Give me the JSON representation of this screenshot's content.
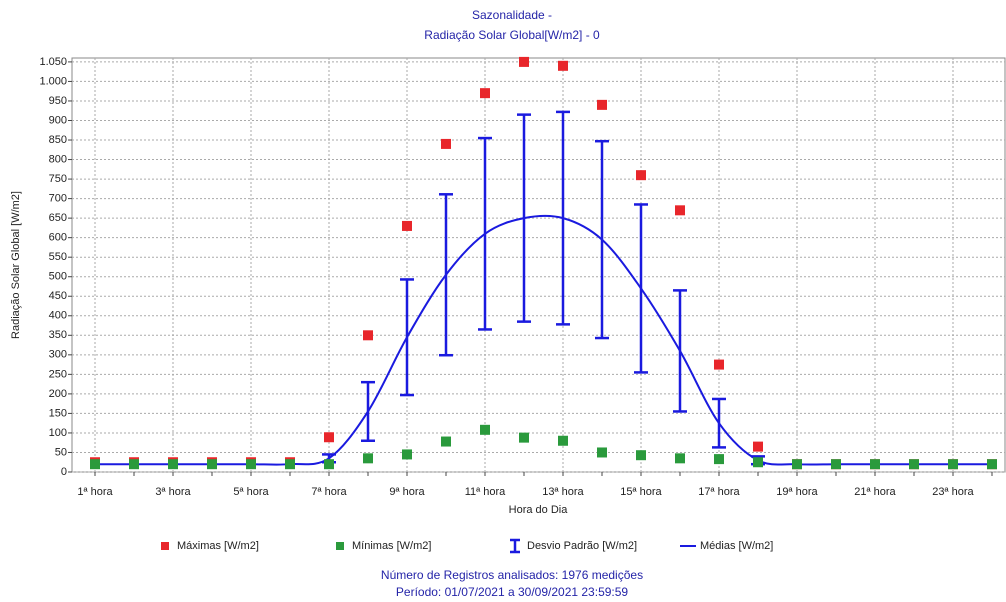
{
  "chart_data": {
    "type": "line",
    "title": "Sazonalidade -",
    "subtitle": "Radiação Solar Global[W/m2] - 0",
    "x_label": "Hora do Dia",
    "y_label": "Radiação Solar Global [W/m2]",
    "categories": [
      "1ª hora",
      null,
      "3ª hora",
      null,
      "5ª hora",
      null,
      "7ª hora",
      null,
      "9ª hora",
      null,
      "11ª hora",
      null,
      "13ª hora",
      null,
      "15ª hora",
      null,
      "17ª hora",
      null,
      "19ª hora",
      null,
      "21ª hora",
      null,
      "23ª hora",
      null
    ],
    "series": [
      {
        "name": "Máximas [W/m2]",
        "color": "#e8262b",
        "kind": "scatter",
        "values": [
          25,
          25,
          25,
          25,
          25,
          25,
          89,
          350,
          630,
          840,
          970,
          1050,
          1040,
          940,
          760,
          670,
          275,
          65,
          20,
          20,
          20,
          20,
          20,
          20
        ]
      },
      {
        "name": "Mínimas [W/m2]",
        "color": "#2a9a3c",
        "kind": "scatter",
        "values": [
          20,
          20,
          20,
          20,
          20,
          20,
          20,
          35,
          45,
          78,
          108,
          88,
          80,
          50,
          43,
          35,
          33,
          25,
          20,
          20,
          20,
          20,
          20,
          20
        ]
      },
      {
        "name": "Desvio Padrão [W/m2]",
        "color": "#1a1adf",
        "kind": "error",
        "values": [
          null,
          null,
          null,
          null,
          null,
          null,
          10,
          75,
          148,
          206,
          245,
          265,
          272,
          252,
          215,
          155,
          62,
          10,
          null,
          null,
          null,
          null,
          null,
          null
        ]
      },
      {
        "name": "Médias [W/m2]",
        "color": "#1a1adf",
        "kind": "line",
        "values": [
          20,
          20,
          20,
          20,
          20,
          20,
          35,
          155,
          345,
          505,
          610,
          650,
          650,
          595,
          470,
          310,
          125,
          30,
          20,
          20,
          20,
          20,
          20,
          20
        ]
      }
    ],
    "ylim": [
      0,
      1060
    ],
    "yticks": [
      0,
      50,
      100,
      150,
      200,
      250,
      300,
      350,
      400,
      450,
      500,
      550,
      600,
      650,
      700,
      750,
      800,
      850,
      900,
      950,
      {
        "value": 1000,
        "label": "1.000"
      },
      {
        "value": 1050,
        "label": "1.050"
      }
    ],
    "grid": true,
    "notes": [
      "Número de Registros analisados: 1976 medições",
      "Período: 01/07/2021 a 30/09/2021 23:59:59"
    ]
  }
}
